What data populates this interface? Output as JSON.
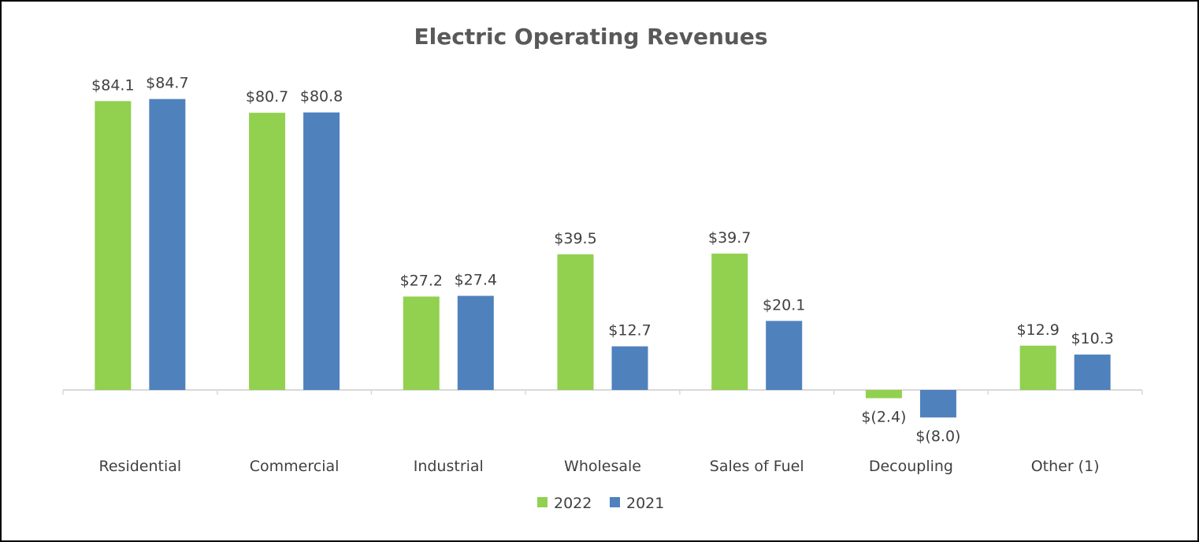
{
  "chart_data": {
    "type": "bar",
    "title": "Electric Operating Revenues",
    "categories": [
      "Residential",
      "Commercial",
      "Industrial",
      "Wholesale",
      "Sales of Fuel",
      "Decoupling",
      "Other (1)"
    ],
    "series": [
      {
        "name": "2022",
        "color": "#92D050",
        "values": [
          84.1,
          80.7,
          27.2,
          39.5,
          39.7,
          -2.4,
          12.9
        ],
        "labels": [
          "$84.1",
          "$80.7",
          "$27.2",
          "$39.5",
          "$39.7",
          "$(2.4)",
          "$12.9"
        ]
      },
      {
        "name": "2021",
        "color": "#4F81BD",
        "values": [
          84.7,
          80.8,
          27.4,
          12.7,
          20.1,
          -8.0,
          10.3
        ],
        "labels": [
          "$84.7",
          "$80.8",
          "$27.4",
          "$12.7",
          "$20.1",
          "$(8.0)",
          "$10.3"
        ]
      }
    ],
    "xlabel": "",
    "ylabel": "",
    "ylim": [
      -10,
      90
    ],
    "grid": false,
    "legend": "bottom-center"
  }
}
